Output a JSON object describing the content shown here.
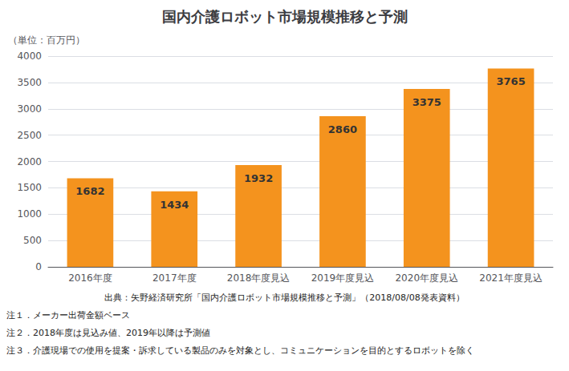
{
  "chart_data": {
    "type": "bar",
    "title": "国内介護ロボット市場規模推移と予測",
    "ylabel": "（単位：百万円）",
    "categories": [
      "2016年度",
      "2017年度",
      "2018年度見込",
      "2019年度見込",
      "2020年度見込",
      "2021年度見込"
    ],
    "values": [
      1682,
      1434,
      1932,
      2860,
      3375,
      3765
    ],
    "color": "#F4931E",
    "ylim": [
      0,
      4000
    ],
    "yticks": [
      0,
      500,
      1000,
      1500,
      2000,
      2500,
      3000,
      3500,
      4000
    ],
    "grid": true,
    "data_labels": true,
    "annotations": [
      "出典：矢野経済研究所「国内介護ロボット市場規模推移と予測」（2018/08/08発表資料）",
      "注１．メーカー出荷金額ベース",
      "注２．2018年度は見込み値、2019年以降は予測値",
      "注３．介護現場での使用を提案・訴求している製品のみを対象とし、コミュニケーションを目的とするロボットを除く"
    ]
  }
}
